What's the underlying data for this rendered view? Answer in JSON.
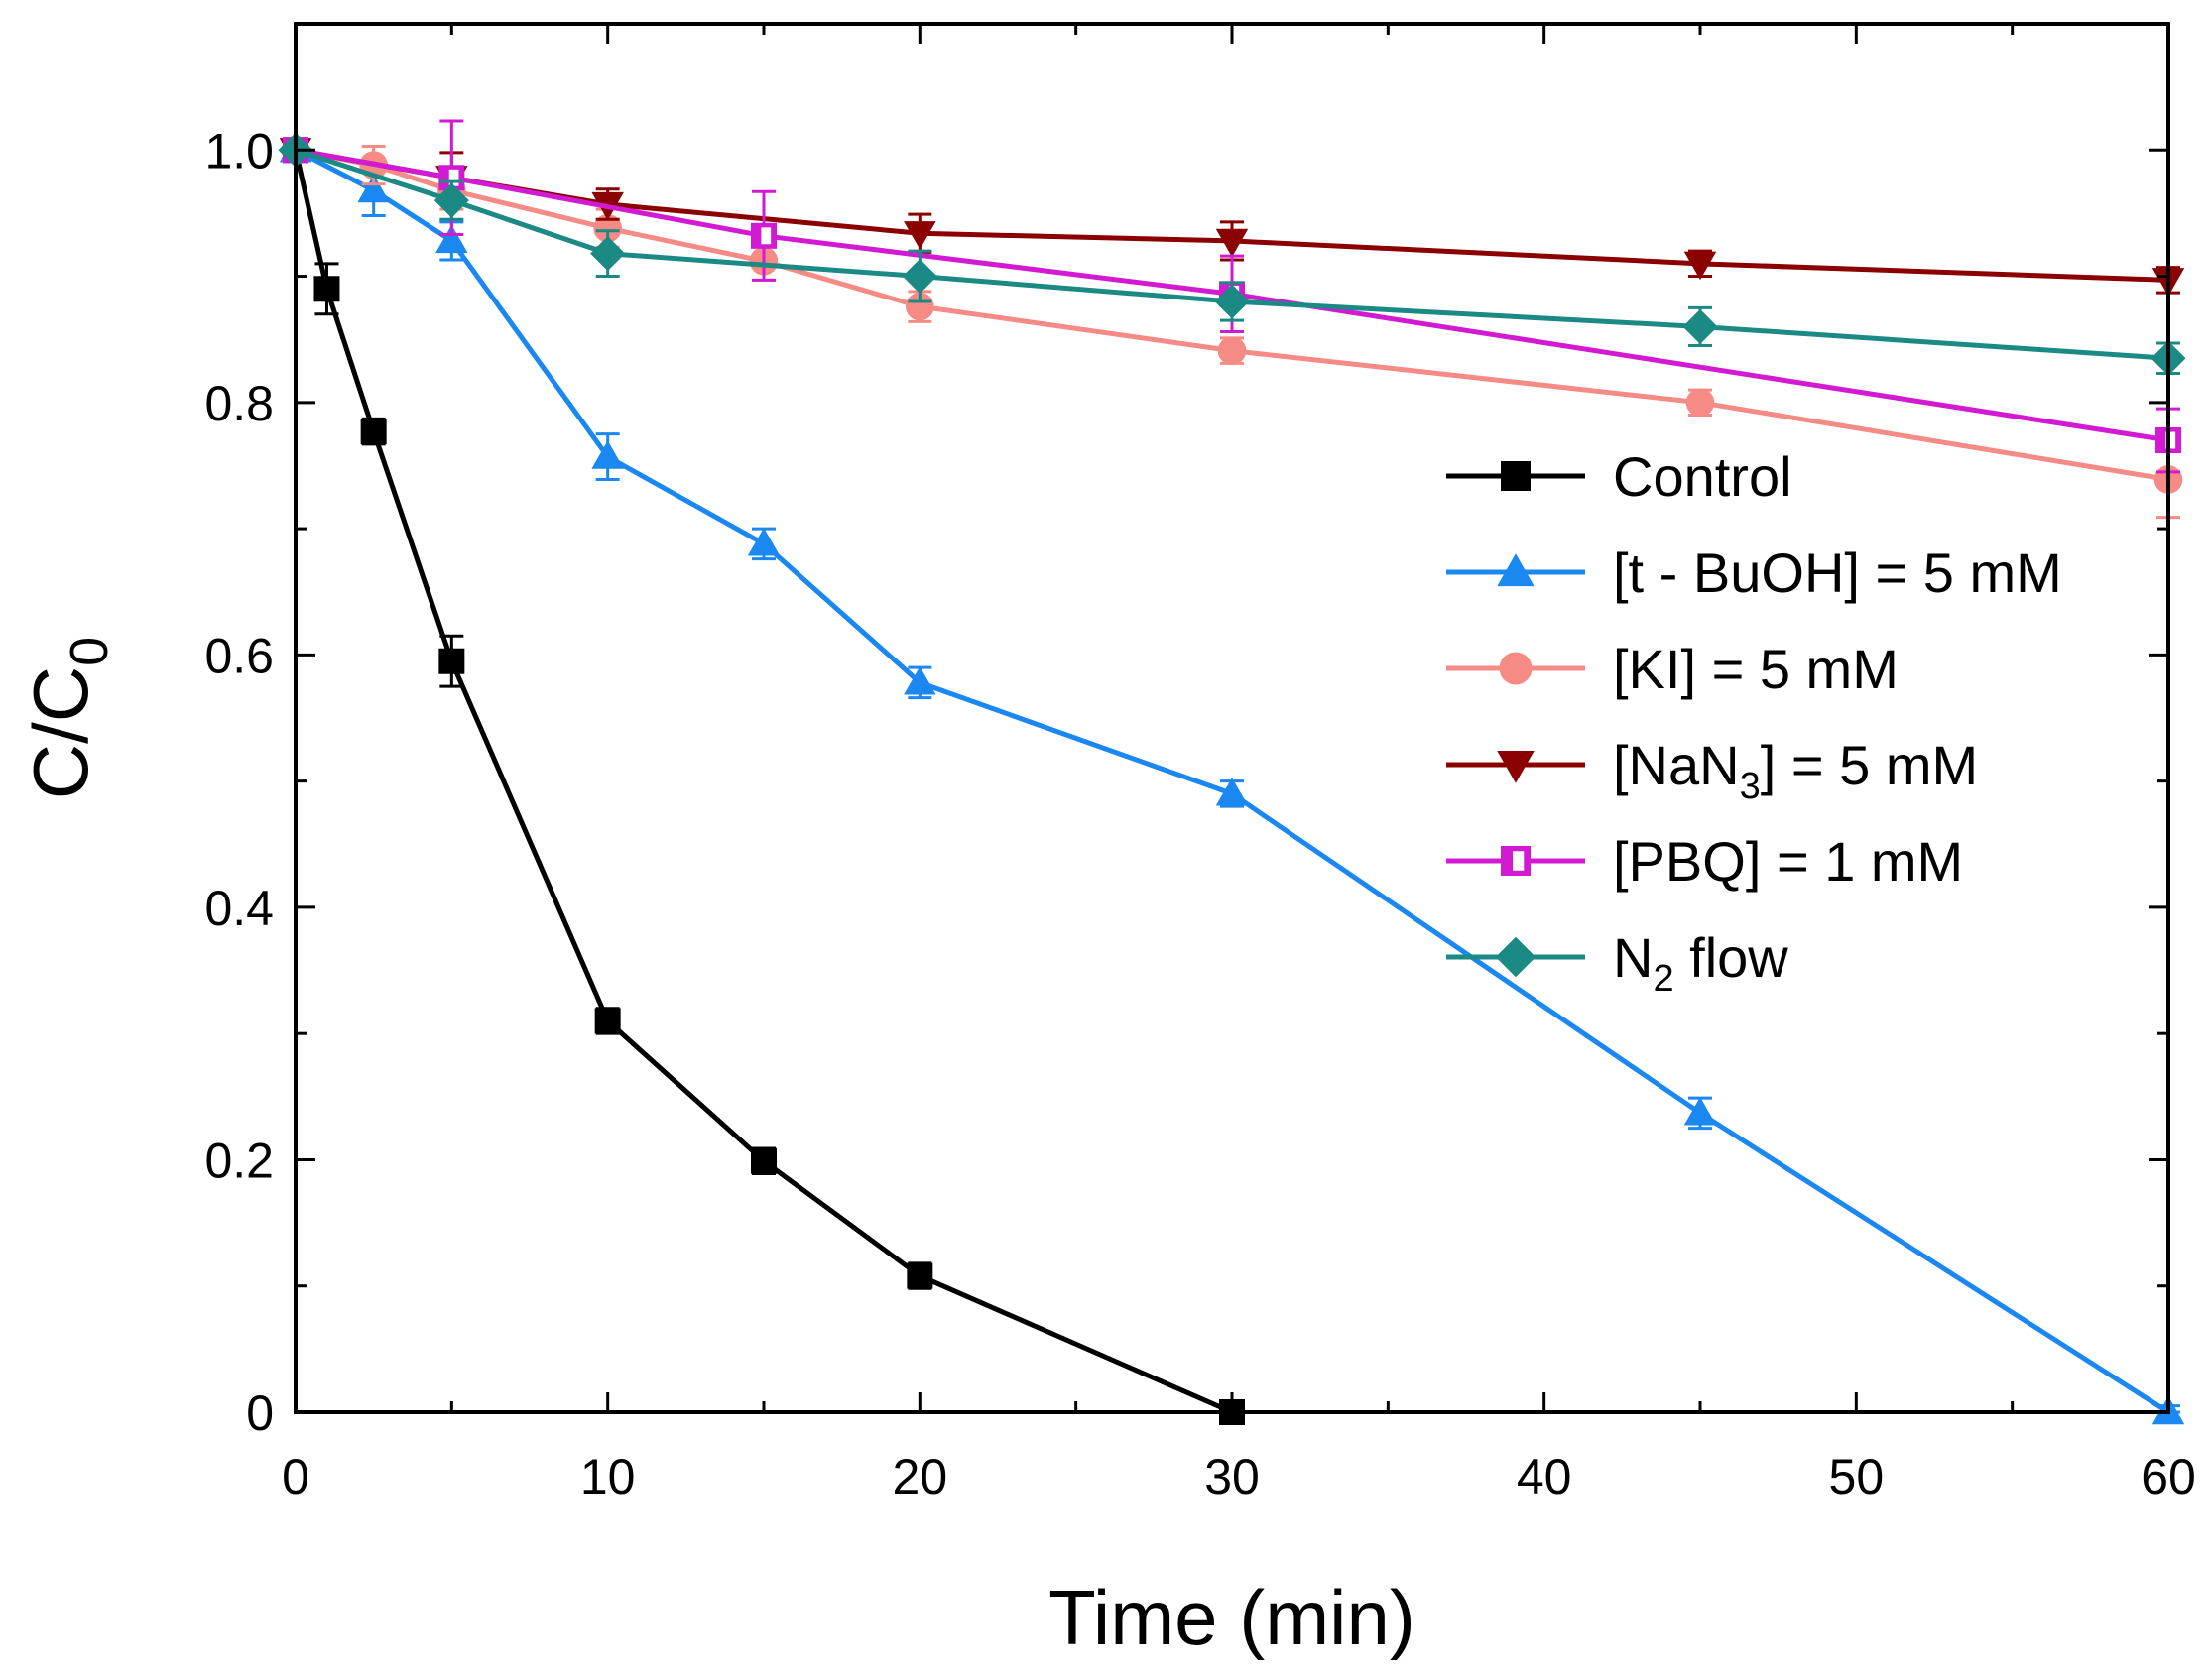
{
  "chart_data": {
    "type": "line",
    "xlabel": "Time (min)",
    "ylabel_main": "C/C",
    "ylabel_sub": "0",
    "xlim": [
      0,
      60
    ],
    "ylim": [
      0,
      1.1
    ],
    "x_ticks": [
      0,
      10,
      20,
      30,
      40,
      50,
      60
    ],
    "x_tick_labels": [
      "0",
      "10",
      "20",
      "30",
      "40",
      "50",
      "60"
    ],
    "y_ticks": [
      0,
      0.2,
      0.4,
      0.6,
      0.8,
      1.0
    ],
    "y_tick_labels": [
      "0",
      "0.2",
      "0.4",
      "0.6",
      "0.8",
      "1.0"
    ],
    "legend_position": "right-middle",
    "series": [
      {
        "name": "Control",
        "legend_main": "Control",
        "legend_sub": "",
        "legend_tail": "",
        "color": "#000000",
        "marker": "square",
        "x": [
          0,
          1,
          2.5,
          5,
          10,
          15,
          20,
          30
        ],
        "y": [
          1.0,
          0.89,
          0.777,
          0.595,
          0.31,
          0.199,
          0.108,
          0.0
        ],
        "err": [
          0,
          0.02,
          0.01,
          0.02,
          0.01,
          0.01,
          0.01,
          0.005
        ]
      },
      {
        "name": "[t - BuOH] = 5 mM",
        "legend_main": "[t - BuOH] = 5 mM",
        "legend_sub": "",
        "legend_tail": "",
        "color": "#1a88f0",
        "marker": "triangle-up",
        "x": [
          0,
          2.5,
          5,
          10,
          15,
          20,
          30,
          45,
          60
        ],
        "y": [
          1.0,
          0.968,
          0.928,
          0.757,
          0.688,
          0.578,
          0.49,
          0.237,
          0.0
        ],
        "err": [
          0,
          0.02,
          0.015,
          0.018,
          0.012,
          0.012,
          0.01,
          0.012,
          0.005
        ]
      },
      {
        "name": "[KI] = 5 mM",
        "legend_main": "[KI] = 5 mM",
        "legend_sub": "",
        "legend_tail": "",
        "color": "#f58b84",
        "marker": "circle",
        "x": [
          0,
          2.5,
          5,
          10,
          15,
          20,
          30,
          45,
          60
        ],
        "y": [
          1.0,
          0.988,
          0.968,
          0.938,
          0.912,
          0.876,
          0.841,
          0.8,
          0.739
        ],
        "err": [
          0,
          0.015,
          0.015,
          0.015,
          0.015,
          0.012,
          0.01,
          0.01,
          0.03
        ]
      },
      {
        "name": "[NaN3] = 5 mM",
        "legend_main": "[NaN",
        "legend_sub": "3",
        "legend_tail": "] = 5 mM",
        "color": "#8b0000",
        "marker": "triangle-down",
        "x": [
          0,
          5,
          10,
          20,
          30,
          45,
          60
        ],
        "y": [
          1.0,
          0.978,
          0.957,
          0.934,
          0.928,
          0.91,
          0.897
        ],
        "err": [
          0,
          0.02,
          0.012,
          0.015,
          0.015,
          0.01,
          0.01
        ]
      },
      {
        "name": "[PBQ] = 1 mM",
        "legend_main": "[PBQ] = 1 mM",
        "legend_sub": "",
        "legend_tail": "",
        "color": "#d21ad2",
        "marker": "square-half",
        "x": [
          0,
          5,
          15,
          30,
          60
        ],
        "y": [
          1.0,
          0.978,
          0.932,
          0.886,
          0.77
        ],
        "err": [
          0,
          0.045,
          0.035,
          0.03,
          0.025
        ]
      },
      {
        "name": "N2 flow",
        "legend_main": "N",
        "legend_sub": "2",
        "legend_tail": " flow",
        "color": "#1b8a85",
        "marker": "diamond",
        "x": [
          0,
          5,
          10,
          20,
          30,
          45,
          60
        ],
        "y": [
          1.0,
          0.96,
          0.918,
          0.9,
          0.88,
          0.86,
          0.835
        ],
        "err": [
          0,
          0.015,
          0.018,
          0.02,
          0.015,
          0.015,
          0.012
        ]
      }
    ]
  }
}
